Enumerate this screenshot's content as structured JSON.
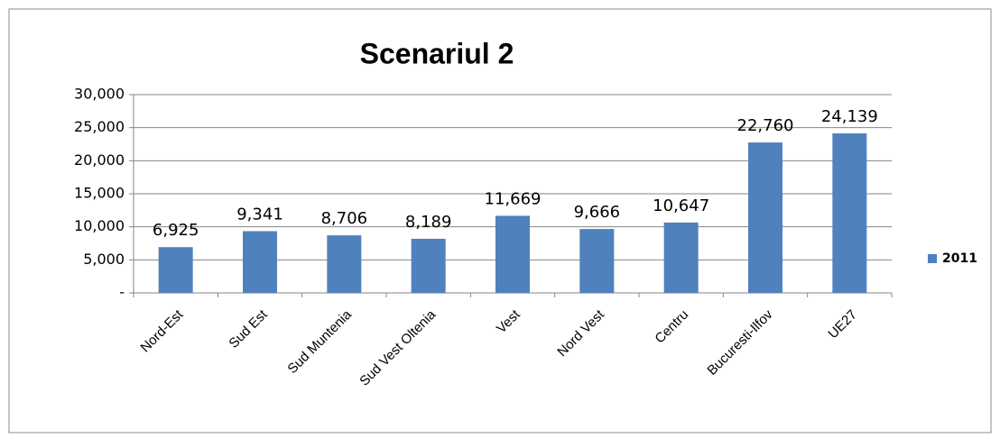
{
  "chart_data": {
    "type": "bar",
    "title": "Scenariul 2",
    "categories": [
      "Nord-Est",
      "Sud Est",
      "Sud Muntenia",
      "Sud Vest Oltenia",
      "Vest",
      "Nord Vest",
      "Centru",
      "Bucuresti-Ilfov",
      "UE27"
    ],
    "series": [
      {
        "name": "2011",
        "color": "#4f81bd",
        "values": [
          6925,
          9341,
          8706,
          8189,
          11669,
          9666,
          10647,
          22760,
          24139
        ],
        "value_labels": [
          "6,925",
          "9,341",
          "8,706",
          "8,189",
          "11,669",
          "9,666",
          "10,647",
          "22,760",
          "24,139"
        ]
      }
    ],
    "ylim": [
      0,
      30000
    ],
    "yticks": [
      {
        "value": 0,
        "label": "-"
      },
      {
        "value": 5000,
        "label": "5,000"
      },
      {
        "value": 10000,
        "label": "10,000"
      },
      {
        "value": 15000,
        "label": "15,000"
      },
      {
        "value": 20000,
        "label": "20,000"
      },
      {
        "value": 25000,
        "label": "25,000"
      },
      {
        "value": 30000,
        "label": "30,000"
      }
    ],
    "grid": true,
    "legend": "right"
  }
}
